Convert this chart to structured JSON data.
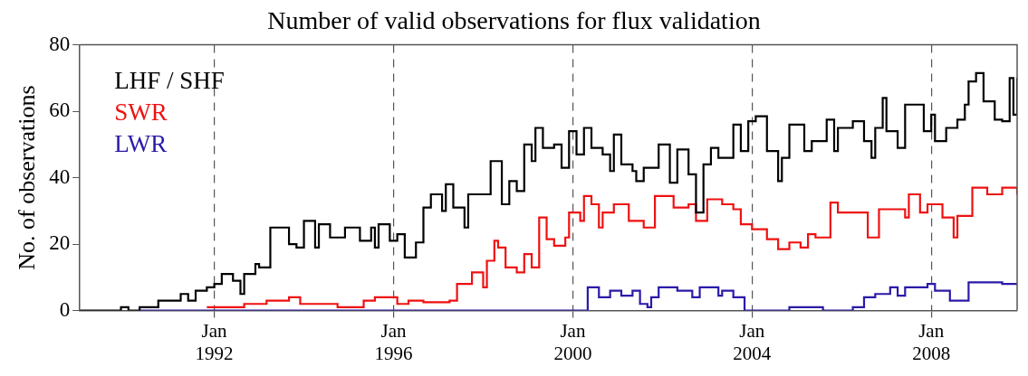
{
  "chart_data": {
    "type": "step",
    "title": "Number of valid observations for flux validation",
    "ylabel": "No. of observations",
    "xlim": [
      "1989-01",
      "2009-12"
    ],
    "ylim": [
      0,
      80
    ],
    "yticks": [
      0,
      20,
      40,
      60,
      80
    ],
    "xticks": [
      {
        "value": "1992-01",
        "label": "Jan 1992"
      },
      {
        "value": "1996-01",
        "label": "Jan 1996"
      },
      {
        "value": "2000-01",
        "label": "Jan 2000"
      },
      {
        "value": "2004-01",
        "label": "Jan 2004"
      },
      {
        "value": "2008-01",
        "label": "Jan 2008"
      }
    ],
    "grid": "x",
    "legend": "top left",
    "series": [
      {
        "name": "LHF / SHF",
        "color": "#000000",
        "x": [
          "1989-01",
          "1989-12",
          "1990-02",
          "1990-05",
          "1990-10",
          "1991-04",
          "1991-06",
          "1991-08",
          "1991-11",
          "1992-01",
          "1992-03",
          "1992-06",
          "1992-08",
          "1992-09",
          "1992-12",
          "1993-01",
          "1993-04",
          "1993-09",
          "1993-11",
          "1994-01",
          "1994-04",
          "1994-05",
          "1994-08",
          "1994-12",
          "1995-04",
          "1995-07",
          "1995-08",
          "1995-09",
          "1995-12",
          "1996-02",
          "1996-04",
          "1996-07",
          "1996-09",
          "1996-11",
          "1997-02",
          "1997-03",
          "1997-05",
          "1997-08",
          "1997-09",
          "1997-12",
          "1998-03",
          "1998-06",
          "1998-08",
          "1998-10",
          "1998-12",
          "1999-02",
          "1999-03",
          "1999-05",
          "1999-08",
          "1999-10",
          "1999-12",
          "2000-02",
          "2000-04",
          "2000-06",
          "2000-09",
          "2000-11",
          "2000-12",
          "2001-02",
          "2001-05",
          "2001-06",
          "2001-08",
          "2001-12",
          "2002-03",
          "2002-05",
          "2002-08",
          "2002-10",
          "2002-12",
          "2003-02",
          "2003-04",
          "2003-08",
          "2003-10",
          "2003-12",
          "2004-02",
          "2004-05",
          "2004-08",
          "2004-09",
          "2004-11",
          "2005-03",
          "2005-05",
          "2005-09",
          "2005-11",
          "2005-12",
          "2006-04",
          "2006-07",
          "2006-09",
          "2006-10",
          "2006-12",
          "2007-01",
          "2007-04",
          "2007-06",
          "2007-11",
          "2008-01",
          "2008-02",
          "2008-05",
          "2008-08",
          "2008-10",
          "2008-11",
          "2009-01",
          "2009-03",
          "2009-06",
          "2009-08",
          "2009-10",
          "2009-11",
          "2009-12"
        ],
        "values": [
          0,
          1,
          0,
          1,
          3,
          5,
          3,
          6,
          7,
          8,
          11,
          9,
          5,
          11,
          14,
          13,
          25,
          20,
          19,
          27,
          19,
          26,
          22,
          25,
          21,
          25,
          19,
          26,
          21,
          23,
          16,
          20.5,
          31,
          35,
          30,
          38,
          31,
          25,
          35,
          35,
          45,
          32,
          39,
          36,
          50,
          45,
          55,
          49,
          50,
          43,
          54,
          47,
          55,
          49,
          47,
          42,
          53,
          44,
          42,
          39,
          43,
          50,
          38.5,
          48.5,
          41,
          29.5,
          44,
          49,
          46,
          56,
          48,
          57,
          58.5,
          48,
          39,
          46,
          56,
          48,
          51,
          57.5,
          48,
          55,
          57,
          51,
          46,
          55,
          64,
          54,
          49,
          62,
          54,
          59,
          51,
          55,
          57.5,
          62,
          69,
          71.5,
          63,
          57.5,
          57,
          70,
          59,
          70
        ]
      },
      {
        "name": "SWR",
        "color": "#ee1111",
        "x": [
          "1991-11",
          "1992-09",
          "1993-03",
          "1993-09",
          "1993-12",
          "1994-10",
          "1995-05",
          "1995-08",
          "1996-02",
          "1996-05",
          "1996-09",
          "1997-04",
          "1997-06",
          "1997-10",
          "1998-01",
          "1998-02",
          "1998-04",
          "1998-05",
          "1998-07",
          "1998-10",
          "1998-12",
          "1999-02",
          "1999-04",
          "1999-06",
          "1999-08",
          "1999-11",
          "1999-12",
          "2000-03",
          "2000-04",
          "2000-06",
          "2000-08",
          "2000-09",
          "2000-12",
          "2001-04",
          "2001-08",
          "2001-11",
          "2002-04",
          "2002-08",
          "2002-10",
          "2003-01",
          "2003-05",
          "2003-08",
          "2003-10",
          "2004-01",
          "2004-05",
          "2004-08",
          "2004-11",
          "2005-02",
          "2005-04",
          "2005-06",
          "2005-10",
          "2005-12",
          "2006-08",
          "2006-11",
          "2007-06",
          "2007-07",
          "2007-10",
          "2007-12",
          "2008-04",
          "2008-07",
          "2008-08",
          "2008-12",
          "2009-04",
          "2009-08",
          "2009-12"
        ],
        "values": [
          1,
          2,
          3,
          4,
          2,
          1,
          3,
          4,
          2,
          3,
          2.5,
          3,
          8,
          11.5,
          7,
          15,
          21,
          19,
          13,
          11.5,
          17,
          13,
          28,
          21.5,
          19.5,
          22,
          29.5,
          27,
          34.5,
          32,
          25,
          29.5,
          32,
          27,
          25,
          34.5,
          31,
          32,
          27,
          33.5,
          32,
          30.5,
          26,
          24.5,
          21.5,
          18.5,
          20.5,
          19,
          23,
          22,
          32.5,
          29.5,
          22,
          30.5,
          28,
          35,
          29.5,
          32,
          28,
          22,
          28.5,
          37,
          35,
          37,
          35
        ]
      },
      {
        "name": "LWR",
        "color": "#2a1aa8",
        "x": [
          "1990-05",
          "2000-05",
          "2000-08",
          "2000-11",
          "2001-02",
          "2001-05",
          "2001-07",
          "2001-09",
          "2001-10",
          "2001-12",
          "2002-05",
          "2002-09",
          "2002-11",
          "2003-04",
          "2003-05",
          "2003-08",
          "2003-11",
          "2004-11",
          "2005-08",
          "2006-04",
          "2006-07",
          "2006-10",
          "2007-02",
          "2007-04",
          "2007-06",
          "2007-12",
          "2008-02",
          "2008-06",
          "2008-11",
          "2009-08",
          "2009-12"
        ],
        "values": [
          0,
          7,
          4,
          6,
          4.5,
          6,
          2,
          1,
          4,
          7,
          6,
          4,
          7,
          4.5,
          6,
          4,
          0,
          1,
          0,
          1,
          4,
          5,
          7,
          4.5,
          7,
          8,
          6,
          3,
          8.5,
          8,
          8
        ]
      }
    ]
  }
}
